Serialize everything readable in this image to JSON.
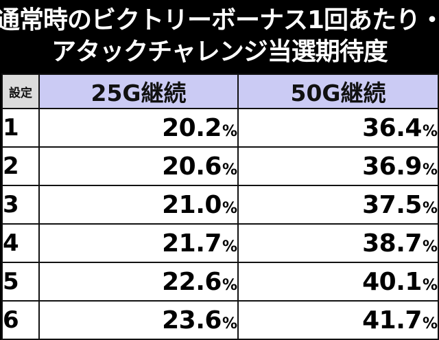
{
  "title": {
    "line1": "通常時のビクトリーボーナス1回あたり・",
    "line2": "アタックチャレンジ当選期待度"
  },
  "table": {
    "headers": [
      "設定",
      "25G継続",
      "50G継続"
    ],
    "unit": "%",
    "rows": [
      {
        "setting": "1",
        "g25": "20.2",
        "g50": "36.4"
      },
      {
        "setting": "2",
        "g25": "20.6",
        "g50": "36.9"
      },
      {
        "setting": "3",
        "g25": "21.0",
        "g50": "37.5"
      },
      {
        "setting": "4",
        "g25": "21.7",
        "g50": "38.7"
      },
      {
        "setting": "5",
        "g25": "22.6",
        "g50": "40.1"
      },
      {
        "setting": "6",
        "g25": "23.6",
        "g50": "41.7"
      }
    ]
  },
  "colors": {
    "background": "#000000",
    "header_fill": "#cbcbf4",
    "setting_header_fill": "#dcdcdc"
  }
}
